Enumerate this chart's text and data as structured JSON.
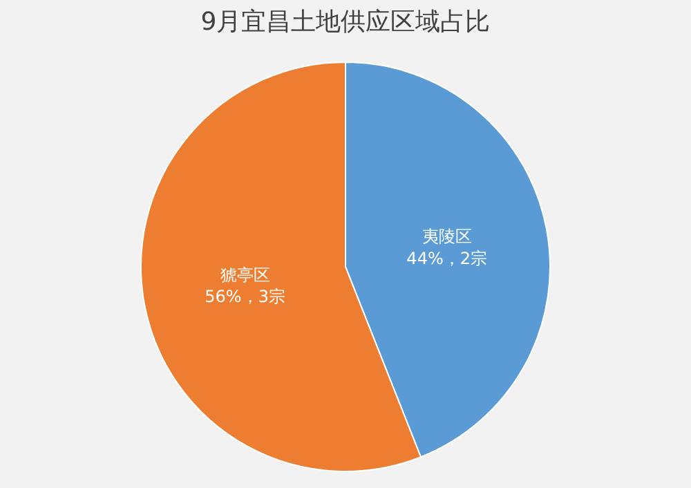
{
  "chart_data": {
    "type": "pie",
    "title": "9月宜昌土地供应区域占比",
    "categories": [
      "夷陵区",
      "猇亭区"
    ],
    "values": [
      44,
      56
    ],
    "colors": [
      "#5b9bd5",
      "#ed7d31"
    ],
    "value_labels": [
      "44%，2宗",
      "56%，3宗"
    ],
    "legend": false
  }
}
